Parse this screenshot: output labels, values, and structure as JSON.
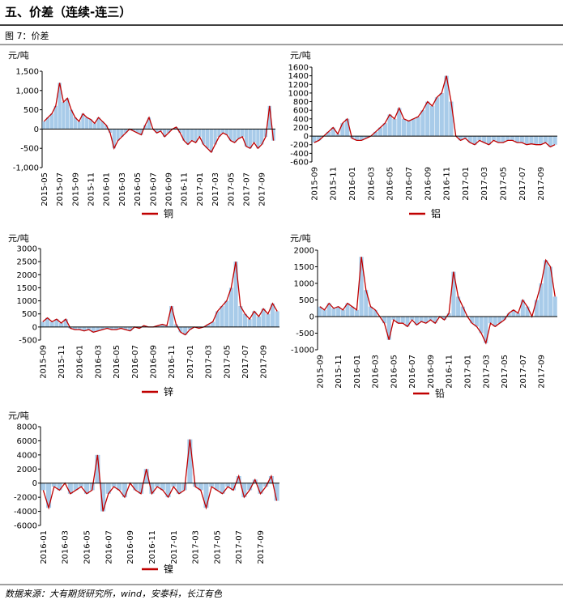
{
  "header": {
    "title": "五、价差（连续-连三）",
    "figure": "图 7：价差"
  },
  "source": "数据来源：大有期货研究所，wind，安泰科，长江有色",
  "chart_data": [
    {
      "type": "line",
      "unit_label": "元/吨",
      "categories": [
        "2015-05",
        null,
        null,
        null,
        "2015-07",
        null,
        null,
        null,
        "2015-09",
        null,
        null,
        null,
        "2015-11",
        null,
        null,
        null,
        "2016-01",
        null,
        null,
        null,
        "2016-03",
        null,
        null,
        null,
        "2016-05",
        null,
        null,
        null,
        "2016-07",
        null,
        null,
        null,
        "2016-09",
        null,
        null,
        null,
        "2016-11",
        null,
        null,
        null,
        "2017-01",
        null,
        null,
        null,
        "2017-03",
        null,
        null,
        null,
        "2017-05",
        null,
        null,
        null,
        "2017-07",
        null,
        null,
        null,
        "2017-09",
        null,
        null,
        null
      ],
      "series": [
        {
          "name": "铜",
          "color": "#c00000",
          "fill": "#a8cbe9",
          "values": [
            200,
            300,
            400,
            600,
            1200,
            700,
            800,
            500,
            300,
            200,
            400,
            300,
            250,
            150,
            300,
            200,
            100,
            -100,
            -500,
            -300,
            -200,
            -100,
            0,
            -50,
            -100,
            -150,
            100,
            300,
            0,
            -100,
            -50,
            -200,
            -100,
            0,
            50,
            -100,
            -300,
            -400,
            -300,
            -350,
            -200,
            -400,
            -500,
            -600,
            -400,
            -200,
            -100,
            -150,
            -300,
            -350,
            -250,
            -200,
            -450,
            -500,
            -350,
            -500,
            -400,
            -200,
            600,
            -300
          ]
        }
      ],
      "ylim": [
        -1000,
        1500
      ],
      "yticks": [
        {
          "value": -1000,
          "label": "-1,000"
        },
        -500,
        0,
        500,
        {
          "value": 1000,
          "label": "1,000"
        },
        {
          "value": 1500,
          "label": "1,500"
        }
      ]
    },
    {
      "type": "line",
      "unit_label": "元/吨",
      "categories": [
        "2015-09",
        null,
        null,
        null,
        "2015-11",
        null,
        null,
        null,
        "2016-01",
        null,
        null,
        null,
        "2016-03",
        null,
        null,
        null,
        "2016-05",
        null,
        null,
        null,
        "2016-07",
        null,
        null,
        null,
        "2016-09",
        null,
        null,
        null,
        "2016-11",
        null,
        null,
        null,
        "2017-01",
        null,
        null,
        null,
        "2017-03",
        null,
        null,
        null,
        "2017-05",
        null,
        null,
        null,
        "2017-07",
        null,
        null,
        null,
        "2017-09",
        null,
        null,
        null
      ],
      "series": [
        {
          "name": "铝",
          "color": "#c00000",
          "fill": "#a8cbe9",
          "values": [
            -150,
            -100,
            0,
            100,
            200,
            50,
            300,
            400,
            -50,
            -100,
            -100,
            -50,
            0,
            100,
            200,
            300,
            500,
            400,
            650,
            400,
            350,
            400,
            450,
            600,
            800,
            700,
            900,
            1000,
            1400,
            800,
            0,
            -100,
            -50,
            -150,
            -200,
            -100,
            -150,
            -200,
            -100,
            -150,
            -150,
            -100,
            -100,
            -150,
            -150,
            -200,
            -180,
            -200,
            -200,
            -150,
            -250,
            -200
          ]
        }
      ],
      "ylim": [
        -600,
        1600
      ],
      "yticks": [
        -600,
        -400,
        -200,
        0,
        200,
        400,
        600,
        800,
        1000,
        1200,
        1400,
        1600
      ]
    },
    {
      "type": "line",
      "unit_label": "元/吨",
      "categories": [
        "2015-09",
        null,
        null,
        null,
        "2015-11",
        null,
        null,
        null,
        "2016-01",
        null,
        null,
        null,
        "2016-03",
        null,
        null,
        null,
        "2016-05",
        null,
        null,
        null,
        "2016-07",
        null,
        null,
        null,
        "2016-09",
        null,
        null,
        null,
        "2016-11",
        null,
        null,
        null,
        "2017-01",
        null,
        null,
        null,
        "2017-03",
        null,
        null,
        null,
        "2017-05",
        null,
        null,
        null,
        "2017-07",
        null,
        null,
        null,
        "2017-09",
        null,
        null,
        null
      ],
      "series": [
        {
          "name": "锌",
          "color": "#c00000",
          "fill": "#a8cbe9",
          "values": [
            200,
            350,
            200,
            300,
            150,
            300,
            -50,
            -100,
            -100,
            -150,
            -100,
            -200,
            -150,
            -100,
            -50,
            -100,
            -100,
            -50,
            -100,
            -150,
            0,
            -50,
            50,
            0,
            0,
            50,
            100,
            50,
            800,
            100,
            -200,
            -300,
            -100,
            0,
            -50,
            0,
            100,
            200,
            600,
            800,
            1000,
            1500,
            2500,
            800,
            500,
            300,
            600,
            400,
            700,
            500,
            900,
            600
          ]
        }
      ],
      "ylim": [
        -500,
        3000
      ],
      "yticks": [
        -500,
        0,
        500,
        1000,
        1500,
        2000,
        2500,
        3000
      ]
    },
    {
      "type": "line",
      "unit_label": "元/吨",
      "categories": [
        "2015-09",
        null,
        null,
        null,
        "2015-11",
        null,
        null,
        null,
        "2016-01",
        null,
        null,
        null,
        "2016-03",
        null,
        null,
        null,
        "2016-05",
        null,
        null,
        null,
        "2016-07",
        null,
        null,
        null,
        "2016-09",
        null,
        null,
        null,
        "2016-11",
        null,
        null,
        null,
        "2017-01",
        null,
        null,
        null,
        "2017-03",
        null,
        null,
        null,
        "2017-05",
        null,
        null,
        null,
        "2017-07",
        null,
        null,
        null,
        "2017-09",
        null,
        null,
        null
      ],
      "series": [
        {
          "name": "铅",
          "color": "#c00000",
          "fill": "#a8cbe9",
          "values": [
            300,
            200,
            400,
            250,
            300,
            200,
            400,
            300,
            200,
            1800,
            800,
            300,
            200,
            0,
            -200,
            -700,
            -100,
            -200,
            -200,
            -300,
            -100,
            -250,
            -150,
            -200,
            -100,
            -200,
            0,
            -100,
            100,
            1350,
            600,
            300,
            0,
            -200,
            -300,
            -500,
            -800,
            -200,
            -300,
            -200,
            -100,
            100,
            200,
            100,
            500,
            300,
            0,
            500,
            1000,
            1700,
            1500,
            600
          ]
        }
      ],
      "ylim": [
        -1000,
        2000
      ],
      "yticks": [
        -1000,
        -500,
        0,
        500,
        1000,
        1500,
        2000
      ]
    },
    {
      "type": "line",
      "unit_label": "元/吨",
      "categories": [
        "2016-01",
        null,
        null,
        null,
        "2016-03",
        null,
        null,
        null,
        "2016-05",
        null,
        null,
        null,
        "2016-07",
        null,
        null,
        null,
        "2016-09",
        null,
        null,
        null,
        "2016-11",
        null,
        null,
        null,
        "2017-01",
        null,
        null,
        null,
        "2017-03",
        null,
        null,
        null,
        "2017-05",
        null,
        null,
        null,
        "2017-07",
        null,
        null,
        null,
        "2017-09",
        null,
        null,
        null
      ],
      "series": [
        {
          "name": "镍",
          "color": "#c00000",
          "fill": "#a8cbe9",
          "values": [
            -1000,
            -3500,
            -500,
            -1000,
            0,
            -1500,
            -1000,
            -500,
            -1500,
            -1000,
            4000,
            -4000,
            -1500,
            -500,
            -1000,
            -2000,
            0,
            -1000,
            -1500,
            2000,
            -1500,
            -500,
            -1000,
            -2000,
            -500,
            -1500,
            -1000,
            6200,
            -500,
            -1000,
            -3500,
            -500,
            -1000,
            -1500,
            -500,
            -1000,
            1000,
            -2000,
            -1000,
            500,
            -1500,
            -500,
            1000,
            -2500
          ]
        }
      ],
      "ylim": [
        -6000,
        8000
      ],
      "yticks": [
        -6000,
        -4000,
        -2000,
        0,
        2000,
        4000,
        6000,
        8000
      ]
    }
  ]
}
